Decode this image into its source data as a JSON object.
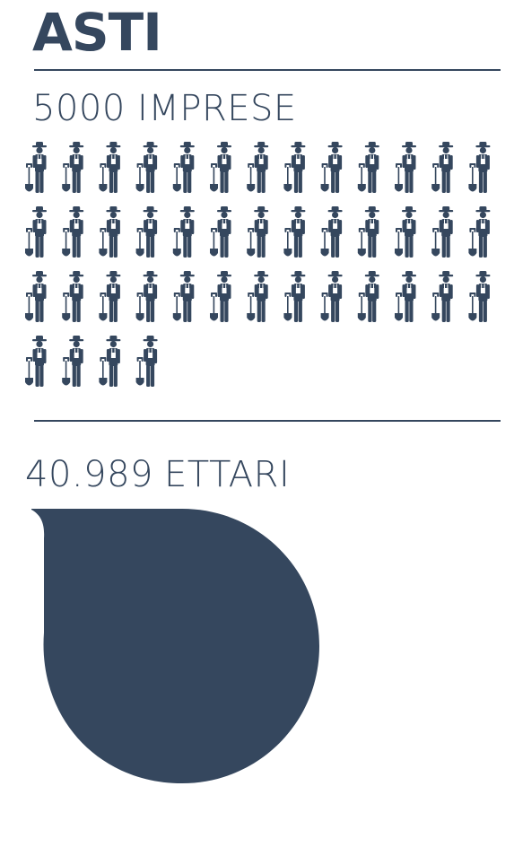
{
  "title": "ASTI",
  "firms": {
    "value": "5000",
    "label": "IMPRESE",
    "icon": "farmer-with-shovel-icon",
    "icon_count": 43,
    "icons_per_row": 13
  },
  "area": {
    "value": "40.989",
    "label": "ETTARI",
    "shape": "drop"
  },
  "colors": {
    "primary": "#35475e",
    "background": "#ffffff"
  }
}
